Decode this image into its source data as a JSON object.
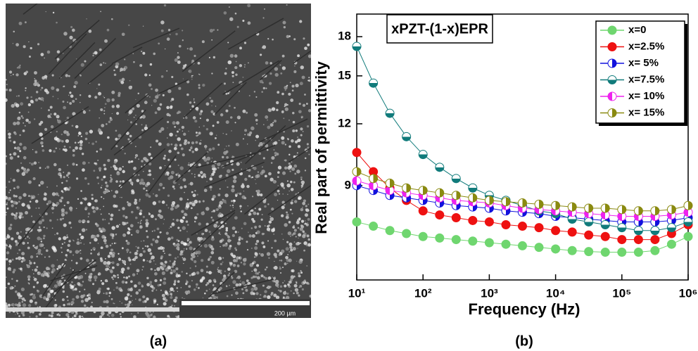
{
  "image": {
    "scale_bar": "200 µm"
  },
  "panel_labels": [
    "(a)",
    "(b)"
  ],
  "chart_data": {
    "type": "line",
    "title": "xPZT-(1-x)EPR",
    "x_label": "Frequency (Hz)",
    "y_label": "Real part of permittivity",
    "xlog": true,
    "ylog": true,
    "xlim": [
      10,
      1000000
    ],
    "ylim": [
      5.8,
      20
    ],
    "xticks": [
      {
        "value": 10,
        "label": "10¹"
      },
      {
        "value": 100,
        "label": "10²"
      },
      {
        "value": 1000,
        "label": "10³"
      },
      {
        "value": 10000,
        "label": "10⁴"
      },
      {
        "value": 100000,
        "label": "10⁵"
      },
      {
        "value": 1000000,
        "label": "10⁶"
      }
    ],
    "yticks": [
      9,
      12,
      15,
      18
    ],
    "legend": "top-right",
    "x": [
      10,
      17.8,
      31.6,
      56.2,
      100,
      178,
      316,
      562,
      1000,
      1780,
      3160,
      5620,
      10000,
      17800,
      31600,
      56200,
      100000,
      178000,
      316000,
      562000,
      1000000
    ],
    "series": [
      {
        "name": "x=0",
        "color": "#6fd66f",
        "values": [
          7.6,
          7.45,
          7.3,
          7.2,
          7.1,
          7.05,
          7.0,
          6.95,
          6.9,
          6.85,
          6.8,
          6.75,
          6.7,
          6.65,
          6.62,
          6.6,
          6.6,
          6.6,
          6.65,
          6.85,
          7.1
        ]
      },
      {
        "name": "x=2.5%",
        "color": "#ee1111",
        "values": [
          10.5,
          9.6,
          8.9,
          8.4,
          8.0,
          7.85,
          7.75,
          7.65,
          7.6,
          7.5,
          7.45,
          7.4,
          7.3,
          7.25,
          7.15,
          7.1,
          7.0,
          7.0,
          7.0,
          7.2,
          7.5
        ]
      },
      {
        "name": "x= 5%",
        "color": "#1111dd",
        "values": [
          9.0,
          8.8,
          8.6,
          8.5,
          8.4,
          8.3,
          8.2,
          8.15,
          8.1,
          8.0,
          7.95,
          7.9,
          7.8,
          7.75,
          7.7,
          7.65,
          7.6,
          7.6,
          7.6,
          7.65,
          7.75
        ]
      },
      {
        "name": "x=7.5%",
        "color": "#117b7b",
        "values": [
          17.2,
          14.5,
          12.6,
          11.3,
          10.4,
          9.8,
          9.3,
          8.9,
          8.6,
          8.4,
          8.2,
          8.0,
          7.9,
          7.7,
          7.6,
          7.5,
          7.4,
          7.3,
          7.3,
          7.4,
          7.6
        ]
      },
      {
        "name": "x= 10%",
        "color": "#ee22ee",
        "values": [
          9.2,
          9.0,
          8.8,
          8.7,
          8.6,
          8.5,
          8.4,
          8.35,
          8.3,
          8.2,
          8.1,
          8.05,
          8.0,
          7.95,
          7.9,
          7.85,
          7.8,
          7.8,
          7.8,
          7.85,
          7.95
        ]
      },
      {
        "name": "x= 15%",
        "color": "#8a8a10",
        "values": [
          9.6,
          9.3,
          9.1,
          8.9,
          8.8,
          8.7,
          8.6,
          8.5,
          8.4,
          8.35,
          8.3,
          8.25,
          8.2,
          8.15,
          8.1,
          8.1,
          8.05,
          8.0,
          8.0,
          8.05,
          8.2
        ]
      }
    ]
  }
}
